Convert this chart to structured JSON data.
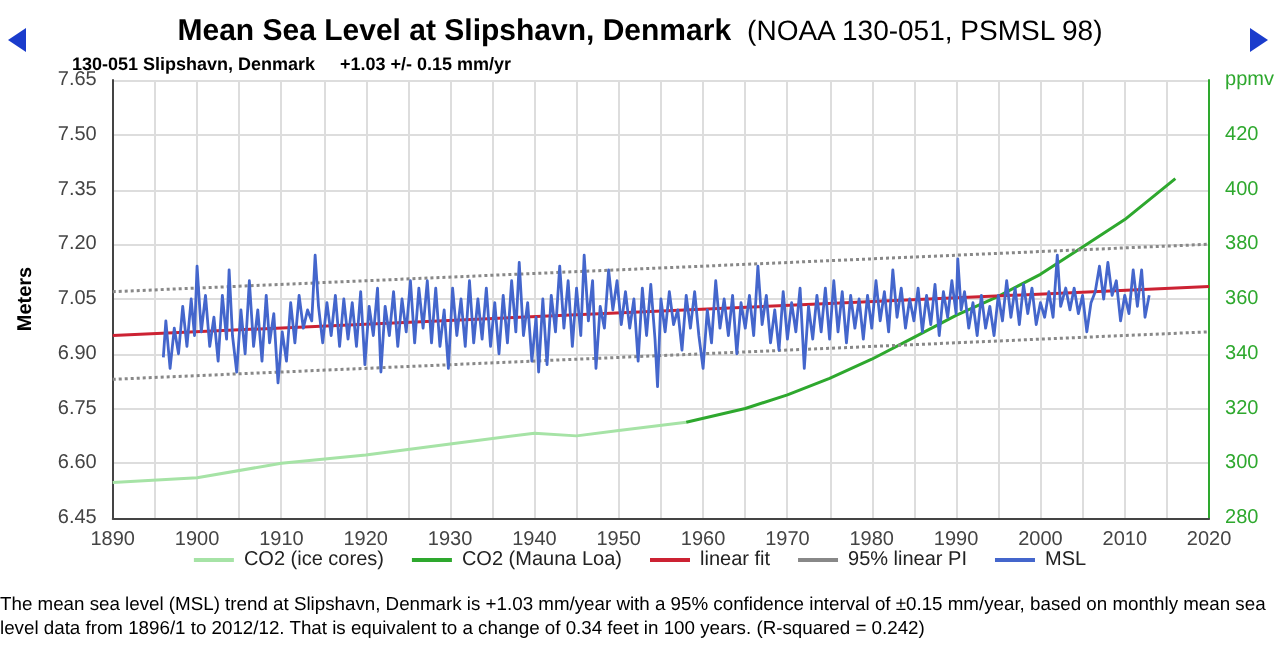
{
  "chart_data": {
    "type": "line",
    "title": "Mean Sea Level at Slipshavn, Denmark",
    "subtitle": "(NOAA 130-051, PSMSL 98)",
    "ylabel": "Meters",
    "annotations": [
      "130-051 Slipshavn, Denmark",
      "+1.03 +/- 0.15 mm/yr",
      "The mean sea level (MSL) trend at Slipshavn, Denmark is +1.03 mm/year with a 95% confidence interval of ±0.15 mm/year, based on monthly mean sea level data from 1896/1 to 2012/12. That is equivalent to a change of 0.34 feet in 100 years. (R-squared = 0.242)"
    ],
    "xlim": [
      1890,
      2020
    ],
    "xticks": [
      1890,
      1900,
      1910,
      1920,
      1930,
      1940,
      1950,
      1960,
      1970,
      1980,
      1990,
      2000,
      2010,
      2020
    ],
    "ylim": [
      6.45,
      7.65
    ],
    "yticks": [
      {
        "value": 6.45,
        "label": "6.45"
      },
      {
        "value": 6.6,
        "label": "6.60"
      },
      {
        "value": 6.75,
        "label": "6.75"
      },
      {
        "value": 6.9,
        "label": "6.90"
      },
      {
        "value": 7.05,
        "label": "7.05"
      },
      {
        "value": 7.2,
        "label": "7.20"
      },
      {
        "value": 7.35,
        "label": "7.35"
      },
      {
        "value": 7.5,
        "label": "7.50"
      },
      {
        "value": 7.65,
        "label": "7.65"
      }
    ],
    "y2lim": [
      280,
      440
    ],
    "y2ticks": [
      280,
      300,
      320,
      340,
      360,
      380,
      400,
      420,
      {
        "value": 440,
        "label": "ppmv"
      }
    ],
    "grid": true,
    "legend": "bottom",
    "marker": "none",
    "series": [
      {
        "name": "CO2 (ice cores)",
        "color": "#a6e3a6",
        "axis": "y2",
        "x": [
          1890,
          1900,
          1910,
          1920,
          1930,
          1940,
          1945,
          1950,
          1958
        ],
        "values": [
          293,
          294.7,
          300,
          303,
          307,
          311,
          310,
          312,
          315
        ]
      },
      {
        "name": "CO2 (Mauna Loa)",
        "color": "#2ea82e",
        "axis": "y2",
        "x": [
          1958,
          1965,
          1970,
          1975,
          1980,
          1985,
          1990,
          1995,
          2000,
          2005,
          2010,
          2016
        ],
        "values": [
          315,
          320,
          325,
          331,
          338,
          346,
          354,
          361,
          369,
          379,
          389,
          404
        ]
      },
      {
        "name": "linear fit",
        "color": "#cc2233",
        "x": [
          1890,
          2020
        ],
        "values": [
          6.95,
          7.084
        ]
      },
      {
        "name": "95% linear PI",
        "color": "#888888",
        "line_style": "dotted",
        "x": [
          1890,
          2020
        ],
        "values": [
          7.07,
          7.2
        ]
      },
      {
        "color": "#888888",
        "line_style": "dotted",
        "x": [
          1890,
          2020
        ],
        "values": [
          6.83,
          6.96
        ]
      },
      {
        "name": "MSL",
        "color": "#4466cc",
        "x": [
          1896.0,
          1896.3,
          1896.8,
          1897.3,
          1897.8,
          1898.3,
          1898.8,
          1899.3,
          1899.7,
          1900.0,
          1900.5,
          1901,
          1901.5,
          1902,
          1902.5,
          1903,
          1903.5,
          1903.8,
          1904.2,
          1904.7,
          1905.2,
          1905.7,
          1906.2,
          1906.7,
          1907.2,
          1907.7,
          1908.2,
          1908.6,
          1909.1,
          1909.6,
          1910.1,
          1910.6,
          1911.1,
          1911.6,
          1912.1,
          1912.6,
          1913.1,
          1913.6,
          1914.0,
          1914.4,
          1914.9,
          1915.4,
          1915.9,
          1916.4,
          1916.9,
          1917.4,
          1917.9,
          1918.4,
          1918.9,
          1919.4,
          1919.9,
          1920.4,
          1920.9,
          1921.4,
          1921.8,
          1922.3,
          1922.8,
          1923.3,
          1923.8,
          1924.3,
          1924.8,
          1925.3,
          1925.8,
          1926.3,
          1926.8,
          1927.3,
          1927.8,
          1928.3,
          1928.8,
          1929.3,
          1929.8,
          1930.3,
          1930.8,
          1931.3,
          1931.8,
          1932.3,
          1932.8,
          1933.3,
          1933.8,
          1934.3,
          1934.8,
          1935.3,
          1935.8,
          1936.3,
          1936.8,
          1937.3,
          1937.8,
          1938.2,
          1938.7,
          1939.2,
          1939.7,
          1940.2,
          1940.5,
          1941.0,
          1941.5,
          1942.0,
          1942.5,
          1943.0,
          1943.5,
          1944.0,
          1944.5,
          1945.0,
          1945.5,
          1945.9,
          1946.4,
          1946.9,
          1947.3,
          1947.8,
          1948.3,
          1948.8,
          1949.3,
          1949.8,
          1950.3,
          1950.8,
          1951.3,
          1951.8,
          1952.3,
          1952.8,
          1953.3,
          1953.8,
          1954.3,
          1954.6,
          1955.0,
          1955.5,
          1956,
          1956.5,
          1957,
          1957.5,
          1958,
          1958.5,
          1959,
          1959.5,
          1960,
          1960.5,
          1961,
          1961.5,
          1962,
          1962.5,
          1963,
          1963.5,
          1964,
          1964.5,
          1965,
          1965.5,
          1966,
          1966.5,
          1967,
          1967.5,
          1968,
          1968.5,
          1969,
          1969.5,
          1970,
          1970.5,
          1971,
          1971.5,
          1972,
          1972.5,
          1973,
          1973.5,
          1974,
          1974.5,
          1975,
          1975.5,
          1976,
          1976.5,
          1977,
          1977.5,
          1978,
          1978.5,
          1979,
          1979.5,
          1980,
          1980.5,
          1981,
          1981.5,
          1982,
          1982.5,
          1983,
          1983.5,
          1984,
          1984.5,
          1985,
          1985.5,
          1986,
          1986.5,
          1987,
          1987.5,
          1988,
          1988.5,
          1989,
          1989.5,
          1990,
          1990.2,
          1990.6,
          1991,
          1991.5,
          1992,
          1992.5,
          1993,
          1993.5,
          1994,
          1994.5,
          1995,
          1995.5,
          1996,
          1996.5,
          1997,
          1997.5,
          1998,
          1998.5,
          1999,
          1999.5,
          2000,
          2000.5,
          2001,
          2001.5,
          2002,
          2002.4,
          2003,
          2003.5,
          2004,
          2004.5,
          2005,
          2005.5,
          2006,
          2006.5,
          2007,
          2007.5,
          2008,
          2008.5,
          2009,
          2009.5,
          2010,
          2010.5,
          2011,
          2011.5,
          2012,
          2012.4,
          2012.9
        ],
        "values": [
          6.89,
          6.99,
          6.86,
          6.97,
          6.9,
          7.03,
          6.92,
          7.05,
          6.95,
          7.14,
          6.96,
          7.06,
          6.92,
          7.0,
          6.88,
          7.06,
          6.94,
          7.13,
          6.95,
          6.85,
          7.02,
          6.9,
          7.1,
          6.92,
          7.02,
          6.88,
          7.06,
          6.93,
          7.01,
          6.82,
          6.96,
          6.88,
          7.04,
          6.93,
          7.06,
          6.97,
          7.02,
          6.99,
          7.17,
          7.03,
          6.93,
          7.04,
          6.95,
          7.06,
          6.92,
          7.05,
          6.94,
          7.04,
          6.92,
          7.07,
          6.87,
          7.03,
          6.95,
          7.08,
          6.85,
          7.03,
          6.95,
          7.07,
          6.92,
          7.05,
          6.96,
          7.1,
          6.93,
          7.08,
          6.97,
          7.1,
          6.93,
          7.08,
          6.92,
          7.02,
          6.86,
          7.08,
          6.95,
          7.05,
          6.92,
          7.1,
          6.93,
          7.05,
          6.94,
          7.08,
          6.92,
          7.04,
          6.9,
          7.06,
          6.93,
          7.1,
          6.96,
          7.15,
          6.95,
          7.04,
          6.88,
          7.0,
          6.85,
          7.05,
          6.87,
          7.06,
          6.96,
          7.14,
          6.97,
          7.1,
          6.92,
          7.08,
          6.95,
          7.17,
          6.99,
          7.1,
          6.86,
          7.03,
          6.97,
          7.13,
          7.02,
          7.1,
          6.98,
          7.07,
          6.97,
          7.05,
          6.88,
          7.08,
          6.95,
          7.09,
          6.94,
          6.81,
          7.05,
          6.96,
          7.07,
          6.98,
          7.02,
          6.91,
          7.06,
          6.97,
          7.07,
          6.95,
          6.86,
          7.02,
          6.93,
          7.1,
          6.97,
          7.05,
          6.95,
          7.06,
          6.9,
          7.04,
          6.97,
          7.06,
          6.95,
          7.14,
          6.98,
          7.06,
          6.93,
          7.02,
          6.91,
          7.07,
          6.94,
          7.04,
          6.96,
          7.08,
          6.86,
          7.03,
          6.94,
          7.06,
          6.96,
          7.08,
          6.94,
          7.1,
          6.96,
          7.07,
          6.93,
          7.06,
          6.97,
          7.05,
          6.94,
          7.06,
          6.97,
          7.1,
          6.99,
          7.07,
          6.96,
          7.13,
          7.0,
          7.08,
          6.97,
          7.05,
          6.99,
          7.08,
          6.96,
          7.06,
          6.98,
          7.09,
          6.95,
          7.07,
          7.0,
          7.1,
          7.01,
          7.16,
          7.02,
          7.07,
          6.97,
          7.04,
          6.95,
          7.06,
          6.97,
          7.03,
          6.95,
          7.06,
          6.99,
          7.1,
          7.0,
          7.08,
          6.98,
          7.09,
          7.01,
          7.08,
          6.98,
          7.04,
          7.0,
          7.07,
          7.0,
          7.17,
          7.03,
          7.08,
          7.02,
          7.08,
          7.01,
          7.06,
          6.96,
          7.04,
          7.07,
          7.14,
          7.05,
          7.15,
          7.06,
          7.1,
          6.99,
          7.06,
          7.01,
          7.13,
          7.03,
          7.13,
          7.0,
          7.06
        ]
      }
    ]
  }
}
